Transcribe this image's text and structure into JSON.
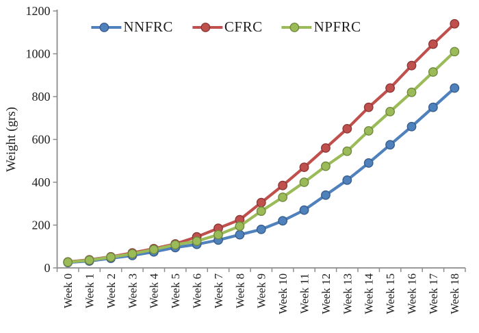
{
  "chart_data": {
    "type": "line",
    "categories": [
      "Week 0",
      "Week 1",
      "Week 2",
      "Week 3",
      "Week 4",
      "Week 5",
      "Week 6",
      "Week 7",
      "Week 8",
      "Week 9",
      "Week 10",
      "Week 11",
      "Week 12",
      "Week 13",
      "Week 14",
      "Week 15",
      "Week 16",
      "Week 17",
      "Week 18"
    ],
    "series": [
      {
        "name": "NNFRC",
        "color": "#4F81BD",
        "marker_border": "#385D8A",
        "values": [
          25,
          32,
          45,
          58,
          75,
          95,
          110,
          130,
          155,
          180,
          220,
          270,
          340,
          410,
          490,
          575,
          660,
          750,
          840
        ]
      },
      {
        "name": "CFRC",
        "color": "#C0504D",
        "marker_border": "#8C3836",
        "values": [
          28,
          38,
          52,
          70,
          90,
          112,
          145,
          185,
          225,
          305,
          385,
          470,
          560,
          650,
          750,
          840,
          945,
          1045,
          1140
        ]
      },
      {
        "name": "NPFRC",
        "color": "#9BBB59",
        "marker_border": "#71893F",
        "values": [
          27,
          36,
          50,
          66,
          86,
          108,
          125,
          155,
          195,
          265,
          330,
          400,
          475,
          545,
          640,
          730,
          820,
          915,
          1010
        ]
      }
    ],
    "title": "",
    "xlabel": "",
    "ylabel": "Weight (grs)",
    "ylim": [
      0,
      1200
    ],
    "yticks": [
      0,
      200,
      400,
      600,
      800,
      1000,
      1200
    ],
    "grid": "off",
    "legend_position": "top-center"
  },
  "style": {
    "axis_color": "#8C8C8C",
    "text_color": "#1F1F1F",
    "background": "#FFFFFF"
  }
}
